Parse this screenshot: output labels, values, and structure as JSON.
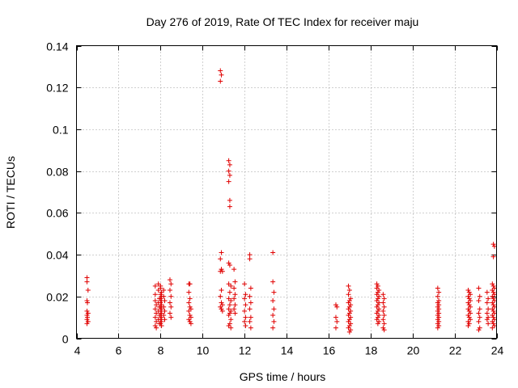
{
  "chart_data": {
    "type": "scatter",
    "title": "Day 276 of 2019, Rate Of TEC Index for receiver maju",
    "xlabel": "GPS time / hours",
    "ylabel": "ROTI / TECUs",
    "xlim": [
      4,
      24
    ],
    "ylim": [
      0,
      0.14
    ],
    "x_ticks": [
      4,
      6,
      8,
      10,
      12,
      14,
      16,
      18,
      20,
      22,
      24
    ],
    "x_tick_labels": [
      "4",
      "6",
      "8",
      "10",
      "12",
      "14",
      "16",
      "18",
      "20",
      "22",
      "24"
    ],
    "y_ticks": [
      0,
      0.02,
      0.04,
      0.06,
      0.08,
      0.1,
      0.12,
      0.14
    ],
    "y_tick_labels": [
      "0",
      "0.02",
      "0.04",
      "0.06",
      "0.08",
      "0.1",
      "0.12",
      "0.14"
    ],
    "grid": true,
    "marker": "+",
    "marker_color": "#e00000",
    "series": [
      {
        "name": "ROTI",
        "points": [
          [
            4.5,
            0.029
          ],
          [
            4.5,
            0.027
          ],
          [
            4.55,
            0.023
          ],
          [
            4.5,
            0.018
          ],
          [
            4.52,
            0.017
          ],
          [
            4.5,
            0.013
          ],
          [
            4.55,
            0.012
          ],
          [
            4.5,
            0.011
          ],
          [
            4.52,
            0.01
          ],
          [
            4.5,
            0.009
          ],
          [
            4.55,
            0.008
          ],
          [
            4.5,
            0.007
          ],
          [
            7.75,
            0.025
          ],
          [
            7.75,
            0.021
          ],
          [
            7.75,
            0.018
          ],
          [
            7.8,
            0.016
          ],
          [
            7.75,
            0.014
          ],
          [
            7.8,
            0.012
          ],
          [
            7.75,
            0.01
          ],
          [
            7.8,
            0.008
          ],
          [
            7.75,
            0.006
          ],
          [
            7.8,
            0.005
          ],
          [
            7.9,
            0.026
          ],
          [
            7.9,
            0.023
          ],
          [
            7.95,
            0.019
          ],
          [
            7.9,
            0.017
          ],
          [
            7.95,
            0.015
          ],
          [
            7.9,
            0.013
          ],
          [
            7.95,
            0.011
          ],
          [
            7.9,
            0.009
          ],
          [
            7.95,
            0.007
          ],
          [
            8.0,
            0.025
          ],
          [
            8.0,
            0.024
          ],
          [
            8.05,
            0.022
          ],
          [
            8.0,
            0.021
          ],
          [
            8.05,
            0.02
          ],
          [
            8.0,
            0.019
          ],
          [
            8.05,
            0.018
          ],
          [
            8.0,
            0.017
          ],
          [
            8.05,
            0.016
          ],
          [
            8.0,
            0.015
          ],
          [
            8.05,
            0.014
          ],
          [
            8.0,
            0.013
          ],
          [
            8.05,
            0.012
          ],
          [
            8.0,
            0.011
          ],
          [
            8.05,
            0.01
          ],
          [
            8.0,
            0.009
          ],
          [
            8.05,
            0.008
          ],
          [
            8.0,
            0.007
          ],
          [
            8.05,
            0.006
          ],
          [
            8.15,
            0.023
          ],
          [
            8.15,
            0.02
          ],
          [
            8.2,
            0.018
          ],
          [
            8.15,
            0.015
          ],
          [
            8.2,
            0.013
          ],
          [
            8.15,
            0.011
          ],
          [
            8.2,
            0.009
          ],
          [
            8.45,
            0.028
          ],
          [
            8.5,
            0.026
          ],
          [
            8.45,
            0.023
          ],
          [
            8.5,
            0.02
          ],
          [
            8.45,
            0.017
          ],
          [
            8.5,
            0.015
          ],
          [
            8.45,
            0.012
          ],
          [
            8.5,
            0.01
          ],
          [
            9.35,
            0.026
          ],
          [
            9.4,
            0.026
          ],
          [
            9.35,
            0.022
          ],
          [
            9.4,
            0.019
          ],
          [
            9.35,
            0.017
          ],
          [
            9.4,
            0.015
          ],
          [
            9.45,
            0.014
          ],
          [
            9.35,
            0.013
          ],
          [
            9.4,
            0.011
          ],
          [
            9.45,
            0.01
          ],
          [
            9.35,
            0.009
          ],
          [
            9.4,
            0.008
          ],
          [
            9.45,
            0.007
          ],
          [
            10.85,
            0.128
          ],
          [
            10.9,
            0.126
          ],
          [
            10.85,
            0.123
          ],
          [
            10.9,
            0.041
          ],
          [
            10.85,
            0.038
          ],
          [
            10.9,
            0.033
          ],
          [
            10.85,
            0.032
          ],
          [
            10.95,
            0.032
          ],
          [
            10.9,
            0.023
          ],
          [
            10.85,
            0.02
          ],
          [
            10.9,
            0.017
          ],
          [
            10.95,
            0.016
          ],
          [
            10.85,
            0.015
          ],
          [
            10.9,
            0.014
          ],
          [
            10.95,
            0.013
          ],
          [
            11.25,
            0.085
          ],
          [
            11.3,
            0.083
          ],
          [
            11.25,
            0.08
          ],
          [
            11.3,
            0.078
          ],
          [
            11.25,
            0.075
          ],
          [
            11.3,
            0.066
          ],
          [
            11.3,
            0.063
          ],
          [
            11.25,
            0.036
          ],
          [
            11.3,
            0.035
          ],
          [
            11.25,
            0.026
          ],
          [
            11.35,
            0.025
          ],
          [
            11.3,
            0.022
          ],
          [
            11.25,
            0.019
          ],
          [
            11.35,
            0.018
          ],
          [
            11.3,
            0.016
          ],
          [
            11.25,
            0.014
          ],
          [
            11.35,
            0.013
          ],
          [
            11.3,
            0.012
          ],
          [
            11.25,
            0.011
          ],
          [
            11.35,
            0.009
          ],
          [
            11.3,
            0.007
          ],
          [
            11.25,
            0.006
          ],
          [
            11.35,
            0.005
          ],
          [
            11.5,
            0.033
          ],
          [
            11.55,
            0.027
          ],
          [
            11.5,
            0.024
          ],
          [
            11.55,
            0.021
          ],
          [
            11.5,
            0.019
          ],
          [
            11.55,
            0.016
          ],
          [
            11.5,
            0.014
          ],
          [
            11.55,
            0.012
          ],
          [
            12.0,
            0.026
          ],
          [
            12.05,
            0.021
          ],
          [
            12.0,
            0.019
          ],
          [
            12.05,
            0.016
          ],
          [
            12.0,
            0.013
          ],
          [
            12.05,
            0.01
          ],
          [
            12.0,
            0.008
          ],
          [
            12.05,
            0.006
          ],
          [
            12.25,
            0.04
          ],
          [
            12.25,
            0.038
          ],
          [
            12.3,
            0.024
          ],
          [
            12.25,
            0.02
          ],
          [
            12.3,
            0.017
          ],
          [
            12.25,
            0.014
          ],
          [
            12.3,
            0.01
          ],
          [
            12.25,
            0.008
          ],
          [
            12.3,
            0.005
          ],
          [
            13.35,
            0.041
          ],
          [
            13.35,
            0.027
          ],
          [
            13.4,
            0.022
          ],
          [
            13.35,
            0.018
          ],
          [
            13.4,
            0.014
          ],
          [
            13.35,
            0.011
          ],
          [
            13.4,
            0.008
          ],
          [
            13.35,
            0.005
          ],
          [
            16.35,
            0.016
          ],
          [
            16.4,
            0.015
          ],
          [
            16.35,
            0.01
          ],
          [
            16.4,
            0.008
          ],
          [
            16.35,
            0.005
          ],
          [
            16.95,
            0.025
          ],
          [
            17.0,
            0.023
          ],
          [
            16.95,
            0.021
          ],
          [
            17.05,
            0.019
          ],
          [
            17.0,
            0.018
          ],
          [
            16.95,
            0.017
          ],
          [
            17.05,
            0.016
          ],
          [
            17.0,
            0.015
          ],
          [
            16.95,
            0.014
          ],
          [
            17.05,
            0.013
          ],
          [
            17.0,
            0.012
          ],
          [
            16.95,
            0.011
          ],
          [
            17.05,
            0.01
          ],
          [
            17.0,
            0.009
          ],
          [
            16.95,
            0.008
          ],
          [
            17.05,
            0.007
          ],
          [
            17.0,
            0.006
          ],
          [
            16.95,
            0.005
          ],
          [
            17.05,
            0.004
          ],
          [
            17.0,
            0.003
          ],
          [
            18.3,
            0.026
          ],
          [
            18.35,
            0.025
          ],
          [
            18.3,
            0.024
          ],
          [
            18.4,
            0.023
          ],
          [
            18.35,
            0.022
          ],
          [
            18.3,
            0.021
          ],
          [
            18.4,
            0.02
          ],
          [
            18.35,
            0.019
          ],
          [
            18.3,
            0.018
          ],
          [
            18.4,
            0.017
          ],
          [
            18.35,
            0.016
          ],
          [
            18.3,
            0.015
          ],
          [
            18.4,
            0.014
          ],
          [
            18.35,
            0.013
          ],
          [
            18.3,
            0.012
          ],
          [
            18.4,
            0.011
          ],
          [
            18.35,
            0.01
          ],
          [
            18.3,
            0.009
          ],
          [
            18.4,
            0.008
          ],
          [
            18.35,
            0.007
          ],
          [
            18.6,
            0.021
          ],
          [
            18.65,
            0.019
          ],
          [
            18.6,
            0.017
          ],
          [
            18.65,
            0.015
          ],
          [
            18.6,
            0.013
          ],
          [
            18.65,
            0.011
          ],
          [
            18.6,
            0.009
          ],
          [
            18.65,
            0.007
          ],
          [
            18.6,
            0.005
          ],
          [
            18.65,
            0.004
          ],
          [
            21.2,
            0.024
          ],
          [
            21.25,
            0.022
          ],
          [
            21.2,
            0.02
          ],
          [
            21.25,
            0.018
          ],
          [
            21.2,
            0.017
          ],
          [
            21.25,
            0.016
          ],
          [
            21.2,
            0.015
          ],
          [
            21.25,
            0.014
          ],
          [
            21.2,
            0.013
          ],
          [
            21.25,
            0.012
          ],
          [
            21.2,
            0.011
          ],
          [
            21.25,
            0.01
          ],
          [
            21.2,
            0.009
          ],
          [
            21.25,
            0.008
          ],
          [
            21.2,
            0.007
          ],
          [
            21.25,
            0.006
          ],
          [
            21.2,
            0.005
          ],
          [
            22.65,
            0.023
          ],
          [
            22.7,
            0.022
          ],
          [
            22.75,
            0.021
          ],
          [
            22.65,
            0.02
          ],
          [
            22.7,
            0.019
          ],
          [
            22.75,
            0.018
          ],
          [
            22.65,
            0.017
          ],
          [
            22.7,
            0.016
          ],
          [
            22.75,
            0.015
          ],
          [
            22.65,
            0.014
          ],
          [
            22.7,
            0.013
          ],
          [
            22.75,
            0.012
          ],
          [
            22.65,
            0.011
          ],
          [
            22.7,
            0.01
          ],
          [
            22.75,
            0.009
          ],
          [
            22.65,
            0.008
          ],
          [
            22.7,
            0.007
          ],
          [
            22.65,
            0.006
          ],
          [
            23.15,
            0.024
          ],
          [
            23.2,
            0.02
          ],
          [
            23.15,
            0.018
          ],
          [
            23.2,
            0.014
          ],
          [
            23.15,
            0.012
          ],
          [
            23.2,
            0.01
          ],
          [
            23.15,
            0.008
          ],
          [
            23.2,
            0.005
          ],
          [
            23.15,
            0.004
          ],
          [
            23.55,
            0.022
          ],
          [
            23.6,
            0.019
          ],
          [
            23.55,
            0.017
          ],
          [
            23.6,
            0.014
          ],
          [
            23.55,
            0.012
          ],
          [
            23.6,
            0.01
          ],
          [
            23.55,
            0.009
          ],
          [
            23.6,
            0.007
          ],
          [
            23.85,
            0.045
          ],
          [
            23.9,
            0.044
          ],
          [
            23.85,
            0.039
          ],
          [
            23.8,
            0.026
          ],
          [
            23.85,
            0.025
          ],
          [
            23.9,
            0.024
          ],
          [
            23.8,
            0.023
          ],
          [
            23.85,
            0.022
          ],
          [
            23.9,
            0.021
          ],
          [
            23.8,
            0.02
          ],
          [
            23.85,
            0.019
          ],
          [
            23.9,
            0.018
          ],
          [
            23.8,
            0.017
          ],
          [
            23.85,
            0.016
          ],
          [
            23.9,
            0.015
          ],
          [
            23.8,
            0.014
          ],
          [
            23.85,
            0.013
          ],
          [
            23.9,
            0.012
          ],
          [
            23.8,
            0.011
          ],
          [
            23.85,
            0.01
          ],
          [
            23.9,
            0.009
          ],
          [
            23.8,
            0.008
          ],
          [
            23.85,
            0.007
          ],
          [
            23.9,
            0.006
          ],
          [
            23.8,
            0.005
          ]
        ]
      }
    ]
  }
}
